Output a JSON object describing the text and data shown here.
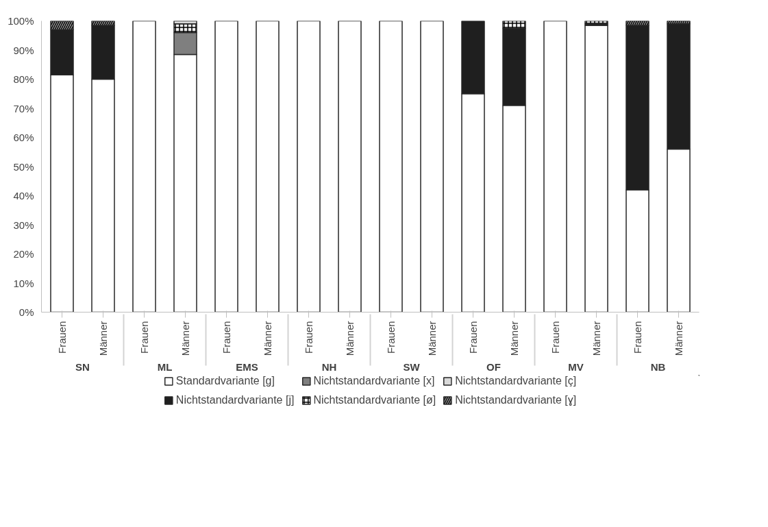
{
  "chart_data": {
    "type": "bar",
    "stacked": true,
    "categories": [
      "Frauen",
      "Männer",
      "Frauen",
      "Männer",
      "Frauen",
      "Männer",
      "Frauen",
      "Männer",
      "Frauen",
      "Männer",
      "Frauen",
      "Männer",
      "Frauen",
      "Männer",
      "Frauen",
      "Männer"
    ],
    "annotations": [
      "SN",
      "ML",
      "EMS",
      "NH",
      "SW",
      "OF",
      "MV",
      "NB"
    ],
    "series": [
      {
        "name": "Standardvariante [g]",
        "color": "#ffffff",
        "values": [
          81.5,
          80,
          100,
          88.5,
          100,
          100,
          100,
          100,
          100,
          100,
          75,
          71,
          100,
          98.5,
          42,
          56
        ]
      },
      {
        "name": "Nichtstandardvariante [j]",
        "color": "#1f1f1f",
        "values": [
          15.5,
          18.5,
          null,
          null,
          null,
          null,
          null,
          null,
          null,
          null,
          25,
          26.5,
          null,
          0.5,
          56.5,
          43
        ]
      },
      {
        "name": "Nichtstandardvariante [x]",
        "color": "#7f7f7f",
        "values": [
          null,
          null,
          null,
          7.5,
          null,
          null,
          null,
          null,
          null,
          null,
          null,
          null,
          null,
          null,
          null,
          null
        ]
      },
      {
        "name": "Nichtstandardvariante [ø]",
        "color": "#f2f2f2",
        "values": [
          null,
          null,
          null,
          3,
          null,
          null,
          null,
          null,
          null,
          null,
          null,
          2.5,
          null,
          1,
          null,
          null
        ]
      },
      {
        "name": "Nichtstandardvariante [ç]",
        "color": "#d9d9d9",
        "values": [
          null,
          null,
          null,
          1,
          null,
          null,
          null,
          null,
          null,
          null,
          null,
          null,
          null,
          null,
          null,
          null
        ]
      },
      {
        "name": "Nichtstandardvariante [ɣ]",
        "color": "#a6a6a6",
        "values": [
          3,
          1.5,
          null,
          null,
          null,
          null,
          null,
          null,
          null,
          null,
          null,
          null,
          null,
          null,
          1.5,
          1
        ]
      }
    ],
    "ylim": [
      0,
      100
    ],
    "yticks": [
      {
        "value": 0,
        "label": "0%"
      },
      {
        "value": 10,
        "label": "10%"
      },
      {
        "value": 20,
        "label": "20%"
      },
      {
        "value": 30,
        "label": "30%"
      },
      {
        "value": 40,
        "label": "40%"
      },
      {
        "value": 50,
        "label": "50%"
      },
      {
        "value": 60,
        "label": "60%"
      },
      {
        "value": 70,
        "label": "70%"
      },
      {
        "value": 80,
        "label": "80%"
      },
      {
        "value": 90,
        "label": "90%"
      },
      {
        "value": 100,
        "label": "100%"
      }
    ],
    "grid": false,
    "legend": "bottom"
  }
}
